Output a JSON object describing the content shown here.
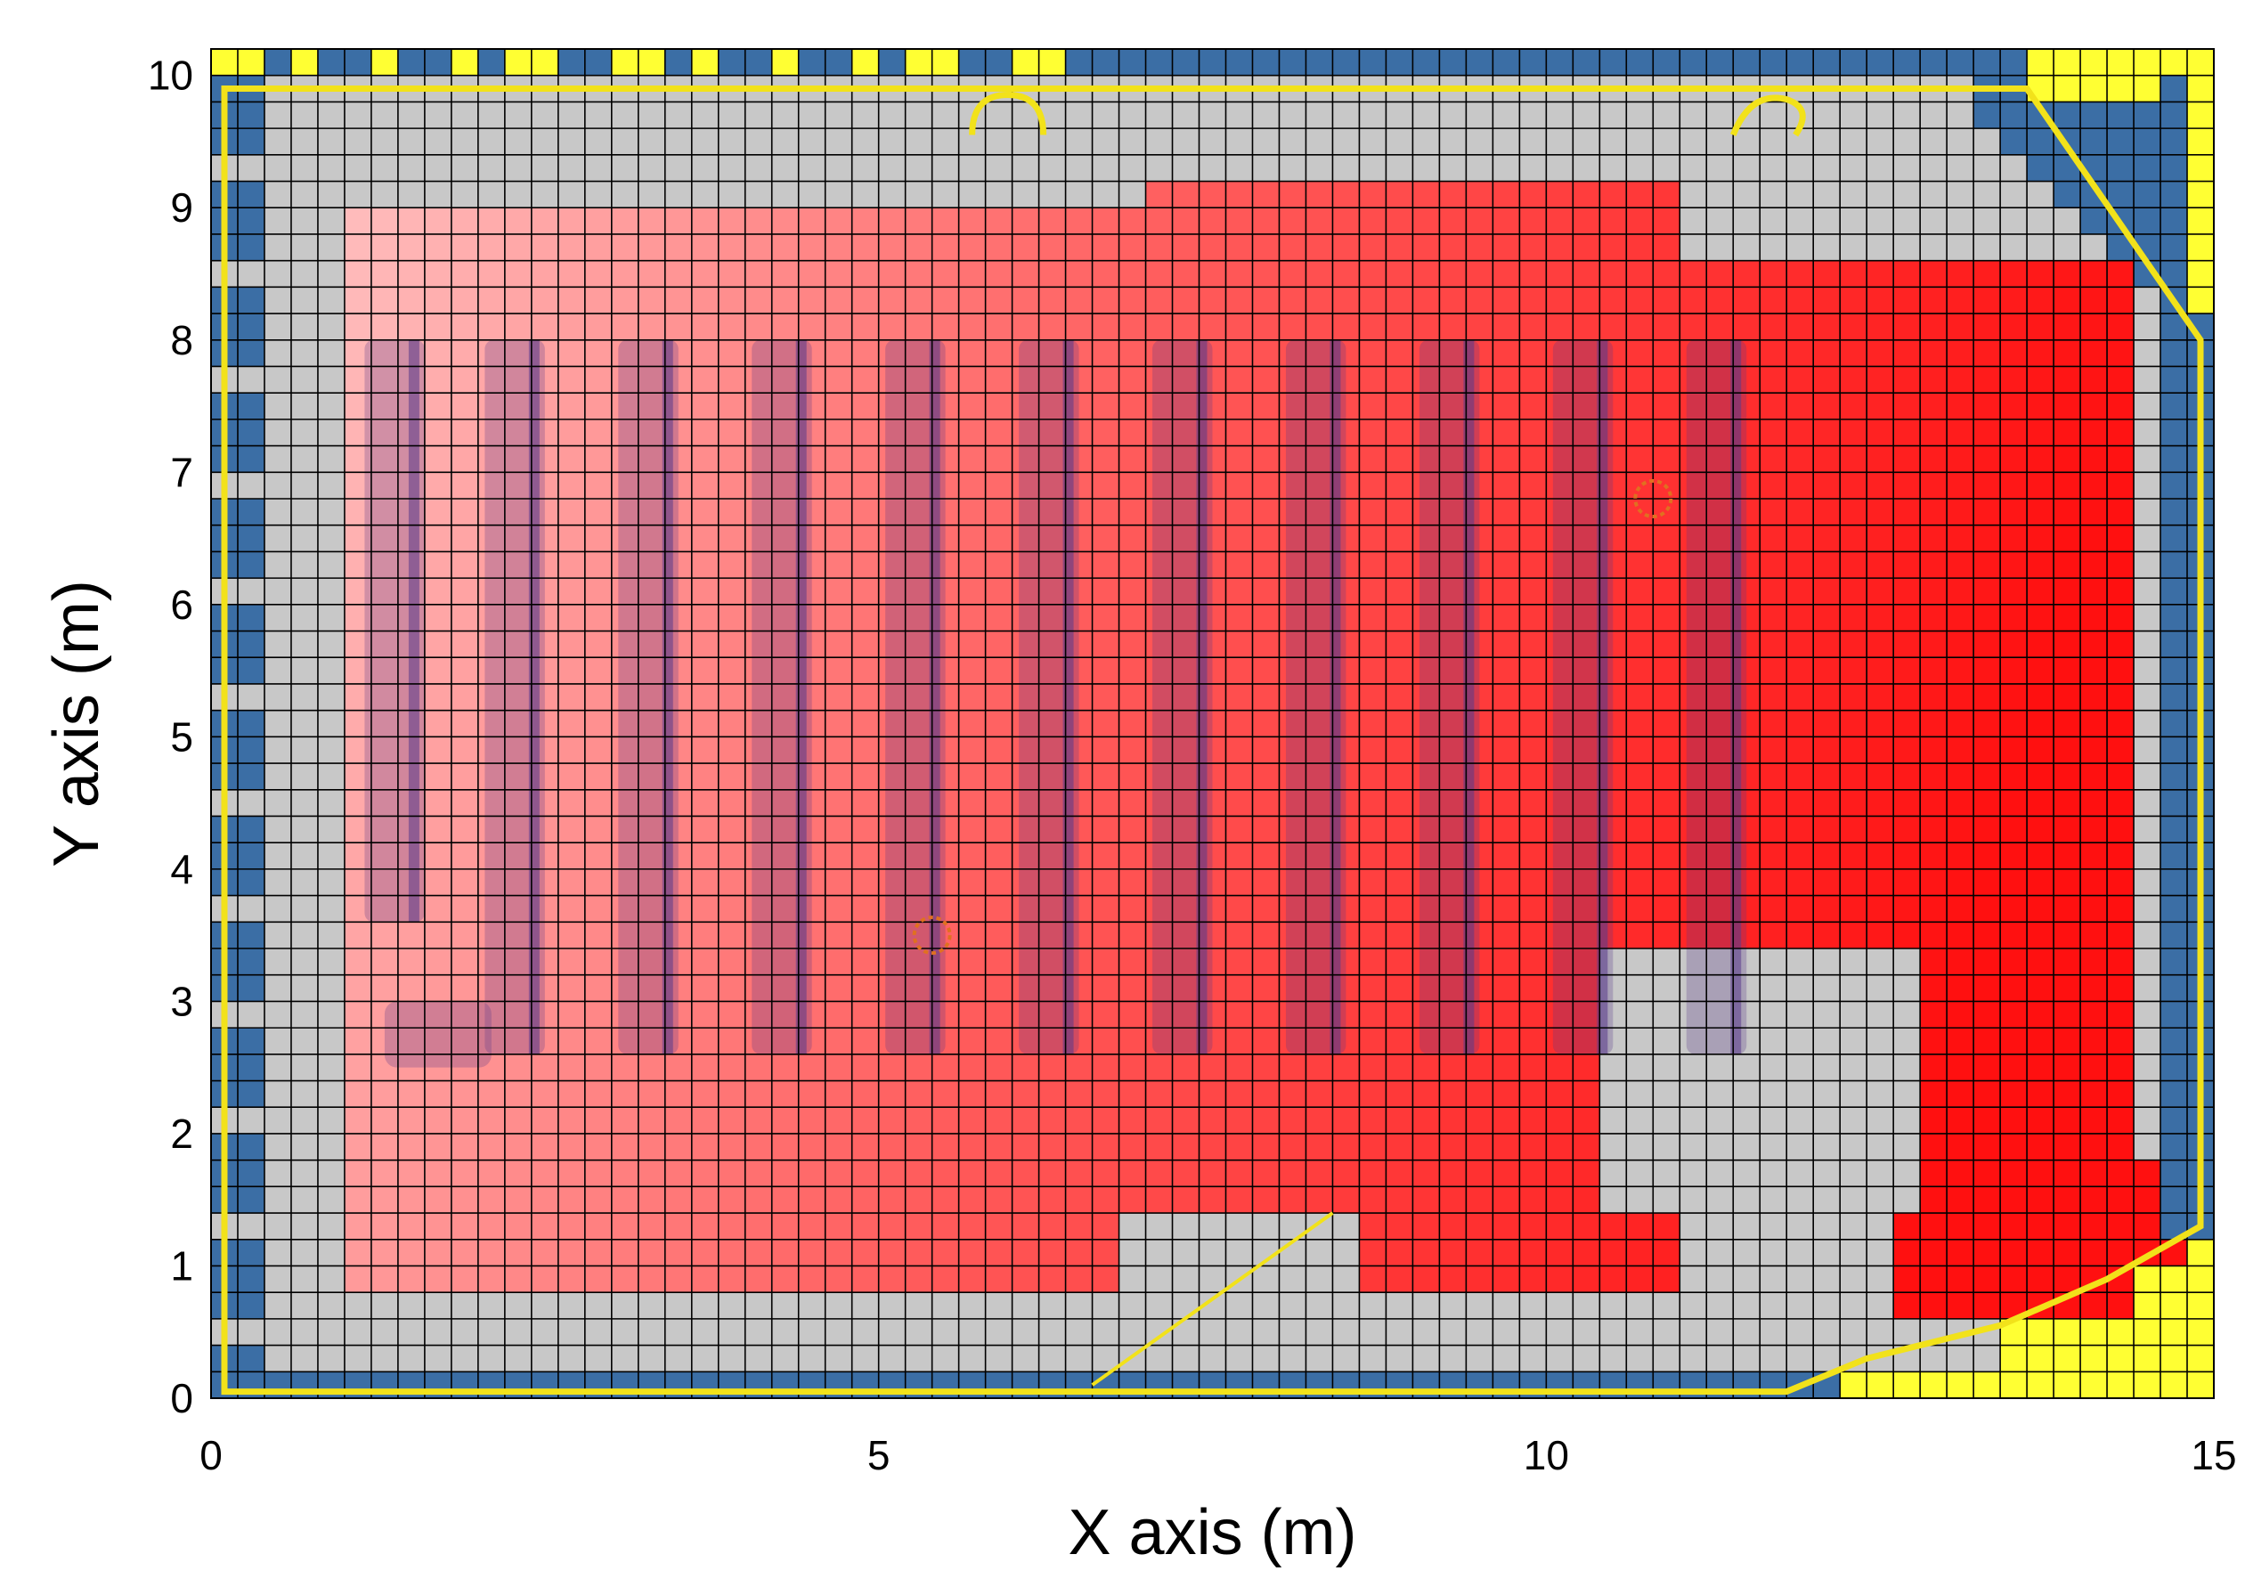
{
  "chart_data": {
    "type": "heatmap",
    "title": "",
    "xlabel": "X axis (m)",
    "ylabel": "Y axis (m)",
    "xlim": [
      0,
      15
    ],
    "ylim": [
      0,
      10.2
    ],
    "xticks": [
      0,
      5,
      10,
      15
    ],
    "yticks": [
      0,
      1,
      2,
      3,
      4,
      5,
      6,
      7,
      8,
      9,
      10
    ],
    "grid_cell_size_m": 0.2,
    "grid": true,
    "colors": {
      "background_cell": "#c8c8c8",
      "wall_cell": "#3b6ea5",
      "outside_cell": "#ffff33",
      "boundary_line": "#f2e21a",
      "heat_low": "#ffc8c8",
      "heat_mid": "#ff5a5a",
      "heat_high": "#ff1010",
      "desk_rows": "#5a3a8a",
      "marker": "#e07020",
      "grid_line": "#000000"
    },
    "heat_regions": [
      {
        "x0": 1.0,
        "y0": 0.8,
        "x1": 8.4,
        "y1": 9.0,
        "intensity": 0.35
      },
      {
        "x0": 7.0,
        "y0": 0.8,
        "x1": 11.0,
        "y1": 9.2,
        "intensity": 0.65
      },
      {
        "x0": 11.0,
        "y0": 0.6,
        "x1": 14.4,
        "y1": 8.6,
        "intensity": 0.95
      },
      {
        "x0": 13.0,
        "y0": 1.0,
        "x1": 14.8,
        "y1": 1.8,
        "intensity": 1.0
      }
    ],
    "cleared_regions": [
      {
        "x0": 6.8,
        "y0": 0.6,
        "x1": 8.6,
        "y1": 1.4
      },
      {
        "x0": 10.4,
        "y0": 1.4,
        "x1": 12.8,
        "y1": 3.4
      },
      {
        "x0": 11.0,
        "y0": 0.6,
        "x1": 12.6,
        "y1": 1.4
      }
    ],
    "desk_rows_x": [
      1.3,
      2.2,
      3.2,
      4.2,
      5.2,
      6.2,
      7.2,
      8.2,
      9.2,
      10.2,
      11.2
    ],
    "markers": [
      {
        "x": 5.4,
        "y": 3.5
      },
      {
        "x": 10.8,
        "y": 6.8
      }
    ]
  }
}
